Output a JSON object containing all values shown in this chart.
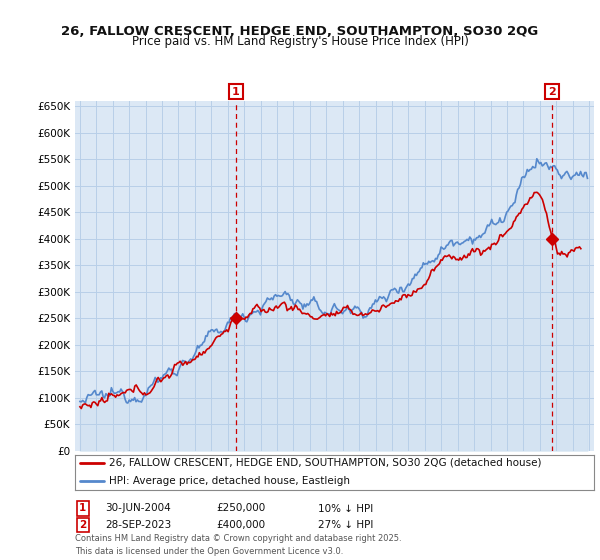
{
  "title": "26, FALLOW CRESCENT, HEDGE END, SOUTHAMPTON, SO30 2QG",
  "subtitle": "Price paid vs. HM Land Registry's House Price Index (HPI)",
  "background_color": "#ffffff",
  "plot_bg_color": "#dce8f5",
  "grid_color": "#b8cfe8",
  "sale_color": "#cc0000",
  "hpi_color": "#5588cc",
  "sale_label": "26, FALLOW CRESCENT, HEDGE END, SOUTHAMPTON, SO30 2QG (detached house)",
  "hpi_label": "HPI: Average price, detached house, Eastleigh",
  "annotation1_date": "30-JUN-2004",
  "annotation1_price": "£250,000",
  "annotation1_hpi": "10% ↓ HPI",
  "annotation2_date": "28-SEP-2023",
  "annotation2_price": "£400,000",
  "annotation2_hpi": "27% ↓ HPI",
  "footer": "Contains HM Land Registry data © Crown copyright and database right 2025.\nThis data is licensed under the Open Government Licence v3.0.",
  "sale1_x": 2004.5,
  "sale1_y": 250000,
  "sale2_x": 2023.75,
  "sale2_y": 400000,
  "ylim": [
    0,
    660000
  ],
  "yticks": [
    0,
    50000,
    100000,
    150000,
    200000,
    250000,
    300000,
    350000,
    400000,
    450000,
    500000,
    550000,
    600000,
    650000
  ],
  "xlim_start": 1994.7,
  "xlim_end": 2026.3
}
